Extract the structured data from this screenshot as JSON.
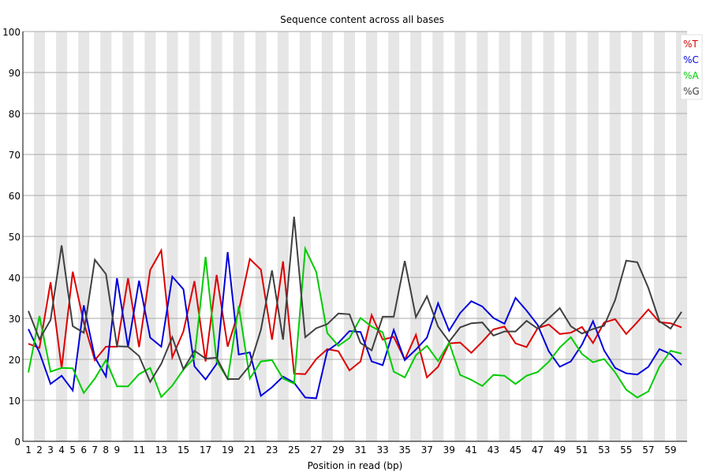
{
  "chart_data": {
    "type": "line",
    "title": "Sequence content across all bases",
    "xlabel": "Position in read (bp)",
    "ylabel": "",
    "ylim": [
      0,
      100
    ],
    "yticks": [
      0,
      10,
      20,
      30,
      40,
      50,
      60,
      70,
      80,
      90,
      100
    ],
    "xtick_labels": [
      "1",
      "2",
      "3",
      "4",
      "5",
      "6",
      "7",
      "8",
      "9",
      "11",
      "13",
      "15",
      "17",
      "19",
      "21",
      "23",
      "25",
      "27",
      "29",
      "31",
      "33",
      "35",
      "37",
      "39",
      "41",
      "43",
      "45",
      "47",
      "49",
      "51",
      "53",
      "55",
      "57",
      "59"
    ],
    "grid": "horizontal",
    "legend_position": "top-right",
    "x": [
      1,
      2,
      3,
      4,
      5,
      6,
      7,
      8,
      9,
      10,
      11,
      12,
      13,
      14,
      15,
      16,
      17,
      18,
      19,
      20,
      21,
      22,
      23,
      24,
      25,
      26,
      27,
      28,
      29,
      30,
      31,
      32,
      33,
      34,
      35,
      36,
      37,
      38,
      39,
      40,
      41,
      42,
      43,
      44,
      45,
      46,
      47,
      48,
      49,
      50,
      51,
      52,
      53,
      54,
      55,
      56,
      57,
      58,
      59,
      60
    ],
    "series": [
      {
        "name": "%T",
        "color": "#dd0000",
        "values": [
          23.8,
          22.8,
          38.8,
          17.8,
          41.4,
          29,
          19.8,
          23.1,
          23.1,
          39.8,
          23,
          41.8,
          46.6,
          20.5,
          26.8,
          39.1,
          19.5,
          40.6,
          23.1,
          31.8,
          44.5,
          41.9,
          24.8,
          43.9,
          16.5,
          16.4,
          20.1,
          22.5,
          22,
          17.3,
          19.5,
          30.8,
          24.8,
          25.5,
          19.9,
          26,
          15.6,
          18.2,
          23.9,
          24.1,
          21.6,
          24.3,
          27.3,
          28,
          23.9,
          23,
          27.6,
          28.5,
          26.2,
          26.5,
          27.9,
          24,
          29,
          29.8,
          26.2,
          29.1,
          32.2,
          29.1,
          28.8,
          27.8
        ]
      },
      {
        "name": "%C",
        "color": "#0000dd",
        "values": [
          27.4,
          21.7,
          14,
          16,
          12.4,
          33.2,
          20.5,
          15.8,
          39.8,
          23.1,
          39.2,
          25.3,
          23.1,
          40.2,
          37.1,
          18.3,
          15.1,
          18.9,
          46.2,
          21.2,
          21.7,
          11.1,
          13.2,
          15.8,
          14.3,
          10.7,
          10.5,
          22.1,
          24,
          26.9,
          26.7,
          19.5,
          18.6,
          27.2,
          19.8,
          22.4,
          25.3,
          33.7,
          27,
          31.3,
          34.2,
          32.9,
          30.1,
          28.7,
          35,
          31.9,
          28.4,
          22,
          18.2,
          19.5,
          23.6,
          29.3,
          22.2,
          17.9,
          16.6,
          16.3,
          18.2,
          22.5,
          21.3,
          18.6
        ]
      },
      {
        "name": "%A",
        "color": "#00cc00",
        "values": [
          16.8,
          30.6,
          17,
          17.9,
          17.8,
          11.8,
          15.3,
          19.8,
          13.4,
          13.4,
          16.4,
          17.9,
          10.8,
          13.6,
          17.5,
          20.4,
          45,
          19.6,
          15.2,
          33,
          15.3,
          19.5,
          19.8,
          15.3,
          14.1,
          47,
          41.3,
          26.4,
          23.3,
          25.2,
          30.1,
          28,
          26.6,
          17,
          15.6,
          21,
          23.3,
          19.6,
          24.1,
          16.2,
          15,
          13.5,
          16.2,
          16,
          14,
          16,
          16.9,
          19.4,
          22.9,
          25.4,
          21.3,
          19.3,
          20.1,
          16.8,
          12.6,
          10.7,
          12.2,
          18.2,
          22.1,
          21.4
        ]
      },
      {
        "name": "%G",
        "color": "#404040",
        "values": [
          31.8,
          24.9,
          29.6,
          47.8,
          28.1,
          26.5,
          44.3,
          40.8,
          23.2,
          23.1,
          20.8,
          14.5,
          18.9,
          25.4,
          17.6,
          22.1,
          20.2,
          20.4,
          15.2,
          15.2,
          18.5,
          27.2,
          41.7,
          24.8,
          54.8,
          25.4,
          27.6,
          28.6,
          31.2,
          31,
          24,
          22.2,
          30.4,
          30.4,
          44,
          30.3,
          35.4,
          28,
          24.3,
          27.8,
          28.8,
          29,
          25.8,
          26.8,
          26.8,
          29.4,
          27.5,
          30,
          32.5,
          28.1,
          26.3,
          27.4,
          28.2,
          34.5,
          44.1,
          43.7,
          37.4,
          29.3,
          27.5,
          31.6
        ]
      }
    ]
  }
}
